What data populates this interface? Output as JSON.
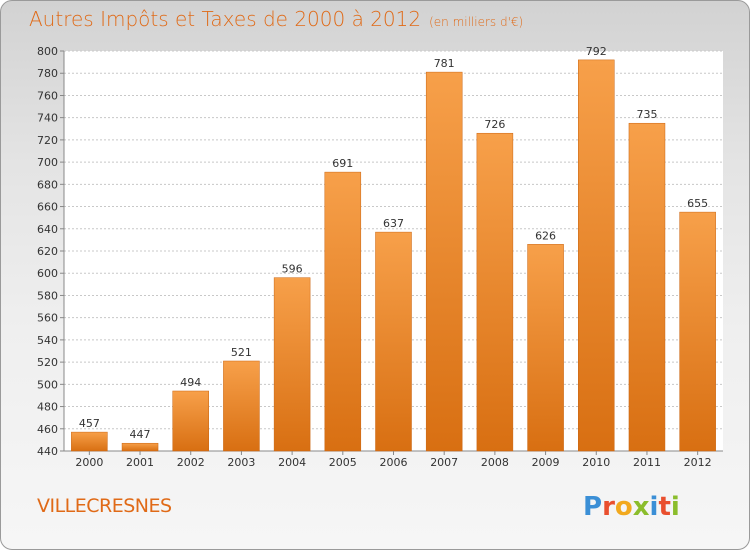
{
  "header": {
    "title": "Autres Impôts et Taxes de 2000 à 2012",
    "subtitle": "(en milliers d'€)"
  },
  "footer": {
    "commune": "VILLECRESNES",
    "logo": {
      "letters": [
        "P",
        "r",
        "o",
        "x",
        "i",
        "t",
        "i"
      ],
      "colors": [
        "#3b8fd6",
        "#e94f2e",
        "#f2a91e",
        "#8bbd2c",
        "#3b8fd6",
        "#e94f2e",
        "#8bbd2c"
      ]
    }
  },
  "colors": {
    "bar_top": "#f7a04a",
    "bar_bottom": "#d86f12",
    "grid": "#c8c8c8",
    "text": "#333333"
  },
  "chart_data": {
    "type": "bar",
    "title": "Autres Impôts et Taxes de 2000 à 2012",
    "subtitle": "(en milliers d'€)",
    "categories": [
      "2000",
      "2001",
      "2002",
      "2003",
      "2004",
      "2005",
      "2006",
      "2007",
      "2008",
      "2009",
      "2010",
      "2011",
      "2012"
    ],
    "values": [
      457,
      447,
      494,
      521,
      596,
      691,
      637,
      781,
      726,
      626,
      792,
      735,
      655
    ],
    "ylim": [
      440,
      800
    ],
    "yticks": [
      440,
      460,
      480,
      500,
      520,
      540,
      560,
      580,
      600,
      620,
      640,
      660,
      680,
      700,
      720,
      740,
      760,
      780,
      800
    ],
    "grid": true,
    "xlabel": "",
    "ylabel": ""
  }
}
